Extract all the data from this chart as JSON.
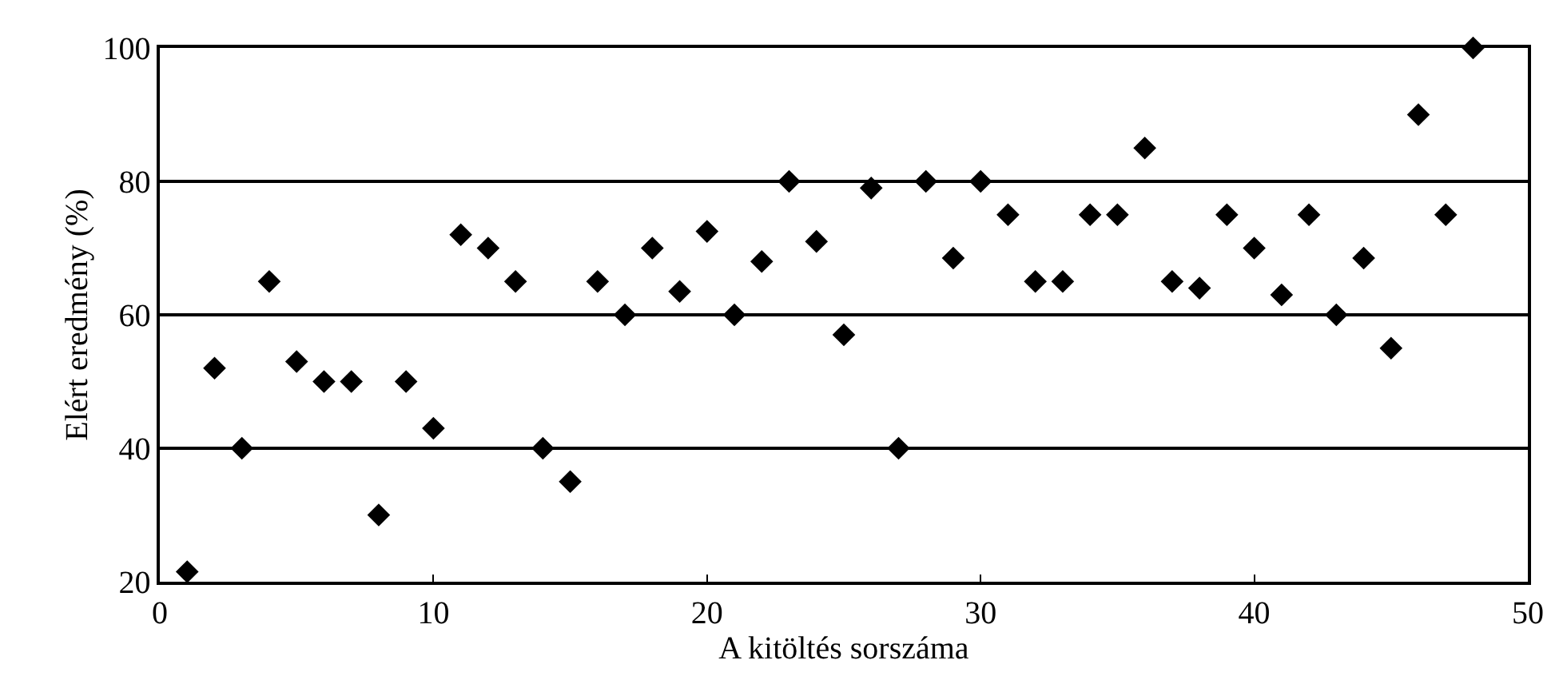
{
  "chart_data": {
    "type": "scatter",
    "xlabel": "A kitöltés sorszáma",
    "ylabel": "Elért eredmény (%)",
    "x": [
      1,
      2,
      3,
      4,
      5,
      6,
      7,
      8,
      9,
      10,
      11,
      12,
      13,
      14,
      15,
      16,
      17,
      18,
      19,
      20,
      21,
      22,
      23,
      24,
      25,
      26,
      27,
      28,
      29,
      30,
      31,
      32,
      33,
      34,
      35,
      36,
      37,
      38,
      39,
      40,
      41,
      42,
      43,
      44,
      45,
      46,
      47,
      48
    ],
    "values": [
      21.5,
      52,
      40,
      65,
      53,
      50,
      50,
      30,
      50,
      43,
      72,
      70,
      65,
      40,
      35,
      65,
      60,
      70,
      63.5,
      72.5,
      60,
      68,
      80,
      71,
      57,
      79,
      40,
      80,
      68.5,
      80,
      75,
      65,
      65,
      75,
      75,
      85,
      65,
      64,
      75,
      70,
      63,
      75,
      60,
      68.5,
      55,
      90,
      75,
      100
    ],
    "color": "#000000",
    "marker": "diamond",
    "xlim": [
      0,
      50
    ],
    "xticks": [
      0,
      10,
      20,
      30,
      40,
      50
    ],
    "ylim": [
      20,
      100
    ],
    "yticks": [
      20,
      40,
      60,
      80,
      100
    ],
    "grid": "y",
    "legend": false
  }
}
